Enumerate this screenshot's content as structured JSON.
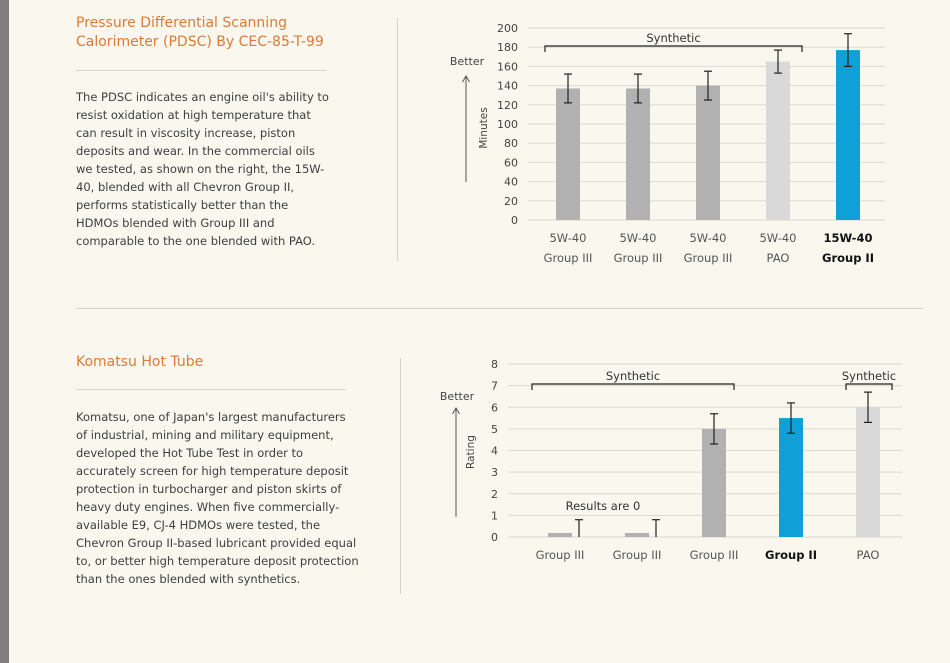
{
  "pdsc": {
    "title_line1": "Pressure Differential Scanning",
    "title_line2": "Calorimeter (PDSC) By CEC-85-T-99",
    "body": "The PDSC indicates an engine oil's ability to resist oxidation at high temperature that can result in viscosity increase, piston deposits and wear. In the commercial oils we tested, as shown on the right, the 15W-40, blended with all Chevron Group II, performs statistically better than the HDMOs blended with Group III and comparable to the one blended with PAO."
  },
  "hottube": {
    "title": "Komatsu Hot Tube",
    "body": "Komatsu, one of Japan's largest manufacturers of industrial, mining and military equipment, developed the Hot Tube Test in order to accurately screen for high temperature deposit protection in turbocharger and piston skirts of heavy duty engines. When five commercially-available E9, CJ-4 HDMOs were tested, the Chevron Group II-based lubricant provided equal to, or better high temperature deposit protection than the ones blended with synthetics."
  },
  "colors": {
    "gray": "#b1b1b1",
    "light_gray": "#d9d9d9",
    "blue": "#0ea0d6",
    "orange": "#dd7a35"
  },
  "chart_data": [
    {
      "type": "bar",
      "ylabel": "Minutes",
      "better_label": "Better",
      "ylim": [
        0,
        200
      ],
      "yticks": [
        0,
        20,
        40,
        60,
        80,
        100,
        120,
        140,
        160,
        180,
        200
      ],
      "grid": true,
      "categories": [
        {
          "line1": "5W-40",
          "line2": "Group III",
          "highlight": false
        },
        {
          "line1": "5W-40",
          "line2": "Group III",
          "highlight": false
        },
        {
          "line1": "5W-40",
          "line2": "Group III",
          "highlight": false
        },
        {
          "line1": "5W-40",
          "line2": "PAO",
          "highlight": false
        },
        {
          "line1": "15W-40",
          "line2": "Group II",
          "highlight": true
        }
      ],
      "values": [
        137,
        137,
        140,
        165,
        177
      ],
      "error": [
        15,
        15,
        15,
        12,
        17
      ],
      "bar_colors": [
        "gray",
        "gray",
        "gray",
        "light_gray",
        "blue"
      ],
      "annotations": [
        {
          "text": "Synthetic",
          "from_index": 0,
          "to_index": 3
        }
      ]
    },
    {
      "type": "bar",
      "ylabel": "Rating",
      "better_label": "Better",
      "ylim": [
        0,
        8
      ],
      "yticks": [
        0,
        1,
        2,
        3,
        4,
        5,
        6,
        7,
        8
      ],
      "grid": true,
      "categories": [
        {
          "line1": "Group III",
          "highlight": false
        },
        {
          "line1": "Group III",
          "highlight": false
        },
        {
          "line1": "Group III",
          "highlight": false
        },
        {
          "line1": "Group II",
          "highlight": true
        },
        {
          "line1": "PAO",
          "highlight": false
        }
      ],
      "values": [
        0,
        0,
        5.0,
        5.5,
        6.0
      ],
      "error": [
        0.8,
        0.8,
        0.7,
        0.7,
        0.7
      ],
      "bar_colors": [
        "gray",
        "gray",
        "gray",
        "blue",
        "light_gray"
      ],
      "annotations": [
        {
          "text": "Synthetic",
          "from_index": 0,
          "to_index": 2
        },
        {
          "text": "Synthetic",
          "from_index": 4,
          "to_index": 4
        }
      ],
      "note": "Results are 0"
    }
  ]
}
